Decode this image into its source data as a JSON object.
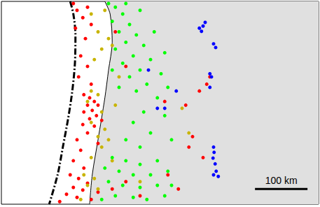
{
  "chart_data": {
    "type": "scatter",
    "xlim": [
      0,
      604
    ],
    "ylim": [
      0,
      387
    ],
    "tick_labels": false,
    "grid": false,
    "scale_bar": {
      "label": "100 km",
      "length": 100
    },
    "series": [
      {
        "type": "area",
        "color": "#e0e0e0",
        "x": [
          197,
          207,
          211,
          204,
          197,
          184,
          173,
          168,
          604,
          604
        ],
        "y": [
          387,
          363,
          309,
          256,
          203,
          123,
          56,
          0,
          0,
          387
        ]
      },
      {
        "type": "line",
        "color": "#000000",
        "line_style": "solid",
        "x": [
          197,
          207,
          211,
          204,
          197,
          184,
          173,
          168
        ],
        "y": [
          387,
          363,
          309,
          256,
          203,
          123,
          56,
          0
        ]
      },
      {
        "type": "line",
        "color": "#000000",
        "line_style": "dashdot",
        "x": [
          131,
          137,
          141,
          140,
          135,
          127,
          117,
          107,
          91
        ],
        "y": [
          387,
          363,
          323,
          269,
          216,
          163,
          109,
          56,
          0
        ]
      },
      {
        "type": "scatter",
        "color": "#ff0000",
        "marker": "circle",
        "x": [
          137,
          144,
          155,
          164,
          141,
          171,
          160,
          151,
          164,
          147,
          171,
          157,
          168,
          177,
          164,
          184,
          173,
          157,
          181,
          168,
          191,
          155,
          177,
          164,
          144,
          184,
          151,
          137,
          157,
          131,
          147,
          164,
          137,
          155,
          124,
          144,
          171,
          111,
          184,
          211,
          237,
          264,
          317,
          337,
          377,
          391,
          397,
          364,
          357,
          384,
          351,
          311,
          237,
          217
        ],
        "y": [
          383,
          370,
          356,
          376,
          336,
          343,
          316,
          283,
          263,
          243,
          229,
          209,
          203,
          196,
          189,
          189,
          179,
          176,
          169,
          163,
          160,
          152,
          149,
          136,
          123,
          116,
          103,
          83,
          69,
          56,
          49,
          40,
          32,
          27,
          19,
          13,
          9,
          5,
          23,
          29,
          43,
          16,
          56,
          29,
          216,
          229,
          243,
          129,
          109,
          89,
          189,
          196,
          263,
          329
        ]
      },
      {
        "type": "scatter",
        "color": "#c8b400",
        "marker": "circle",
        "x": [
          171,
          197,
          184,
          204,
          211,
          191,
          177,
          171,
          184,
          164,
          191,
          171,
          197,
          184,
          204,
          191,
          171,
          157,
          177,
          164,
          184,
          151,
          211,
          224,
          344,
          357,
          264,
          217
        ],
        "y": [
          363,
          370,
          329,
          316,
          303,
          296,
          276,
          216,
          209,
          196,
          176,
          156,
          143,
          129,
          123,
          109,
          89,
          56,
          49,
          36,
          29,
          9,
          83,
          243,
          183,
          136,
          43,
          189
        ]
      },
      {
        "type": "scatter",
        "color": "#00ff00",
        "marker": "circle",
        "x": [
          204,
          217,
          231,
          211,
          244,
          224,
          257,
          237,
          271,
          217,
          251,
          284,
          231,
          264,
          304,
          244,
          277,
          317,
          257,
          297,
          224,
          211,
          291,
          264,
          237,
          311,
          271,
          311,
          251,
          284,
          324,
          237,
          264,
          211,
          237,
          264,
          297,
          224,
          251,
          284,
          317,
          204,
          231,
          264,
          297,
          217,
          251,
          277,
          191,
          311,
          324,
          197
        ],
        "y": [
          383,
          376,
          363,
          349,
          343,
          329,
          323,
          309,
          303,
          296,
          283,
          276,
          269,
          256,
          249,
          243,
          229,
          223,
          216,
          203,
          223,
          256,
          329,
          370,
          383,
          289,
          176,
          169,
          156,
          136,
          123,
          123,
          109,
          89,
          83,
          76,
          83,
          63,
          56,
          56,
          63,
          43,
          36,
          32,
          36,
          16,
          13,
          9,
          9,
          16,
          36,
          69
        ]
      },
      {
        "type": "scatter",
        "color": "#0000ff",
        "marker": "circle",
        "x": [
          377,
          384,
          388,
          381,
          404,
          408,
          397,
          400,
          280,
          311,
          333,
          397,
          404,
          405,
          403,
          407,
          409,
          404,
          413,
          297
        ],
        "y": [
          336,
          340,
          347,
          330,
          306,
          299,
          249,
          243,
          256,
          183,
          216,
          223,
          109,
          99,
          88,
          77,
          63,
          56,
          53,
          183
        ]
      }
    ]
  }
}
